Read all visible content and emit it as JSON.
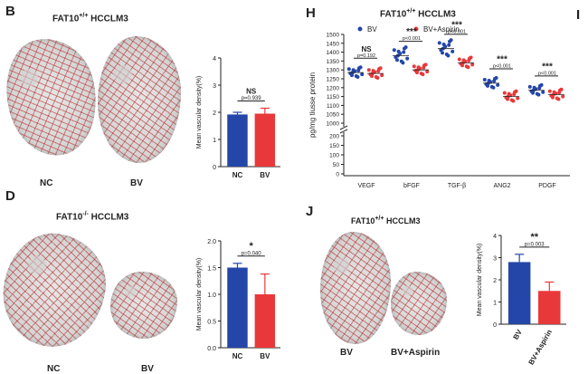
{
  "panels": {
    "B": {
      "letter": "B",
      "title_pre": "FAT10",
      "title_sup": "+/+",
      "title_post": " HCCLM3",
      "labels": [
        "NC",
        "BV"
      ]
    },
    "D": {
      "letter": "D",
      "title_pre": "FAT10",
      "title_sup": "-/-",
      "title_post": " HCCLM3",
      "labels": [
        "NC",
        "BV"
      ]
    },
    "H": {
      "letter": "H",
      "title_pre": "FAT10",
      "title_sup": "+/+",
      "title_post": " HCCLM3"
    },
    "I": {
      "letter": "I"
    },
    "J": {
      "letter": "J",
      "title_pre": "FAT10",
      "title_sup": "+/+",
      "title_post": " HCCLM3",
      "labels": [
        "BV",
        "BV+Aspirin"
      ]
    }
  },
  "colors": {
    "blue": "#2446a8",
    "red": "#e8383a",
    "vessel_red": "#b81c1c",
    "tissue": "#d4d4d4"
  },
  "chart_data": [
    {
      "id": "B",
      "type": "bar",
      "categories": [
        "NC",
        "BV"
      ],
      "values": [
        1.92,
        1.95
      ],
      "errors": [
        0.08,
        0.2
      ],
      "colors": [
        "#2446a8",
        "#e8383a"
      ],
      "ylabel": "Mean vascular density(%)",
      "ylim": [
        0,
        4
      ],
      "yticks": [
        "0",
        "1",
        "2",
        "3",
        "4"
      ],
      "sig": {
        "mark": "NS",
        "p": "p=0.939"
      }
    },
    {
      "id": "D",
      "type": "bar",
      "categories": [
        "NC",
        "BV"
      ],
      "values": [
        1.5,
        1.0
      ],
      "errors": [
        0.08,
        0.38
      ],
      "colors": [
        "#2446a8",
        "#e8383a"
      ],
      "ylabel": "Mean vascular density(%)",
      "ylim": [
        0,
        2.0
      ],
      "yticks": [
        "0.0",
        "0.5",
        "1.0",
        "1.5",
        "2.0"
      ],
      "sig": {
        "mark": "*",
        "p": "p=0.040"
      }
    },
    {
      "id": "J",
      "type": "bar",
      "categories": [
        "BV",
        "BV+Aspirin"
      ],
      "values": [
        2.8,
        1.5
      ],
      "errors": [
        0.35,
        0.4
      ],
      "colors": [
        "#2446a8",
        "#e8383a"
      ],
      "ylabel": "Mean vascular density(%)",
      "ylim": [
        0,
        4
      ],
      "yticks": [
        "0",
        "1",
        "2",
        "3",
        "4"
      ],
      "sig": {
        "mark": "**",
        "p": "p=0.003"
      }
    },
    {
      "id": "H",
      "type": "scatter",
      "ylabel": "pg/mg tiusse protein",
      "yticks": [
        "0",
        "50",
        "100",
        "150",
        "200",
        "1000",
        "1050",
        "1100",
        "1150",
        "1200",
        "1250",
        "1300",
        "1350",
        "1400",
        "1450",
        "1500"
      ],
      "legend": [
        "BV",
        "BV+Aspirin"
      ],
      "categories": [
        "VEGF",
        "bFGF",
        "TGF-β",
        "ANG2",
        "PDGF"
      ],
      "series": [
        {
          "name": "BV",
          "means": [
            1285,
            1380,
            1420,
            1225,
            1185
          ]
        },
        {
          "name": "BV+Aspirin",
          "means": [
            1280,
            1300,
            1340,
            1150,
            1160
          ]
        }
      ],
      "sig": [
        {
          "mark": "NS",
          "p": "p=0.192"
        },
        {
          "mark": "***",
          "p": "p<0.001"
        },
        {
          "mark": "***",
          "p": "p<0.001"
        },
        {
          "mark": "***",
          "p": "p<0.001"
        },
        {
          "mark": "***",
          "p": "p<0.001"
        }
      ]
    }
  ]
}
